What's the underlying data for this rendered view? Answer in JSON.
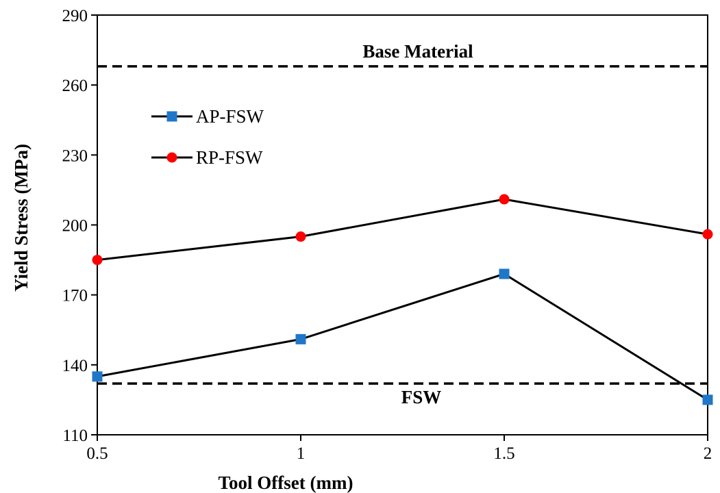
{
  "chart_data": {
    "type": "line",
    "title": "",
    "xlabel": "Tool Offset (mm)",
    "ylabel": "Yield Stress (MPa)",
    "x": [
      0.5,
      1,
      1.5,
      2
    ],
    "x_ticks": [
      "0.5",
      "1",
      "1.5",
      "2"
    ],
    "xlim": [
      0.5,
      2
    ],
    "ylim": [
      110,
      290
    ],
    "y_ticks": [
      110,
      140,
      170,
      200,
      230,
      260,
      290
    ],
    "grid": false,
    "legend_position": "upper-left",
    "series": [
      {
        "name": "AP-FSW",
        "marker": "square",
        "color": "#1f77c8",
        "values": [
          135,
          151,
          179,
          125
        ]
      },
      {
        "name": "RP-FSW",
        "marker": "circle",
        "color": "#ff0000",
        "values": [
          185,
          195,
          211,
          196
        ]
      }
    ],
    "reference_lines": [
      {
        "label": "Base Material",
        "value": 268,
        "style": "dashed"
      },
      {
        "label": "FSW",
        "value": 132,
        "style": "dashed"
      }
    ]
  }
}
